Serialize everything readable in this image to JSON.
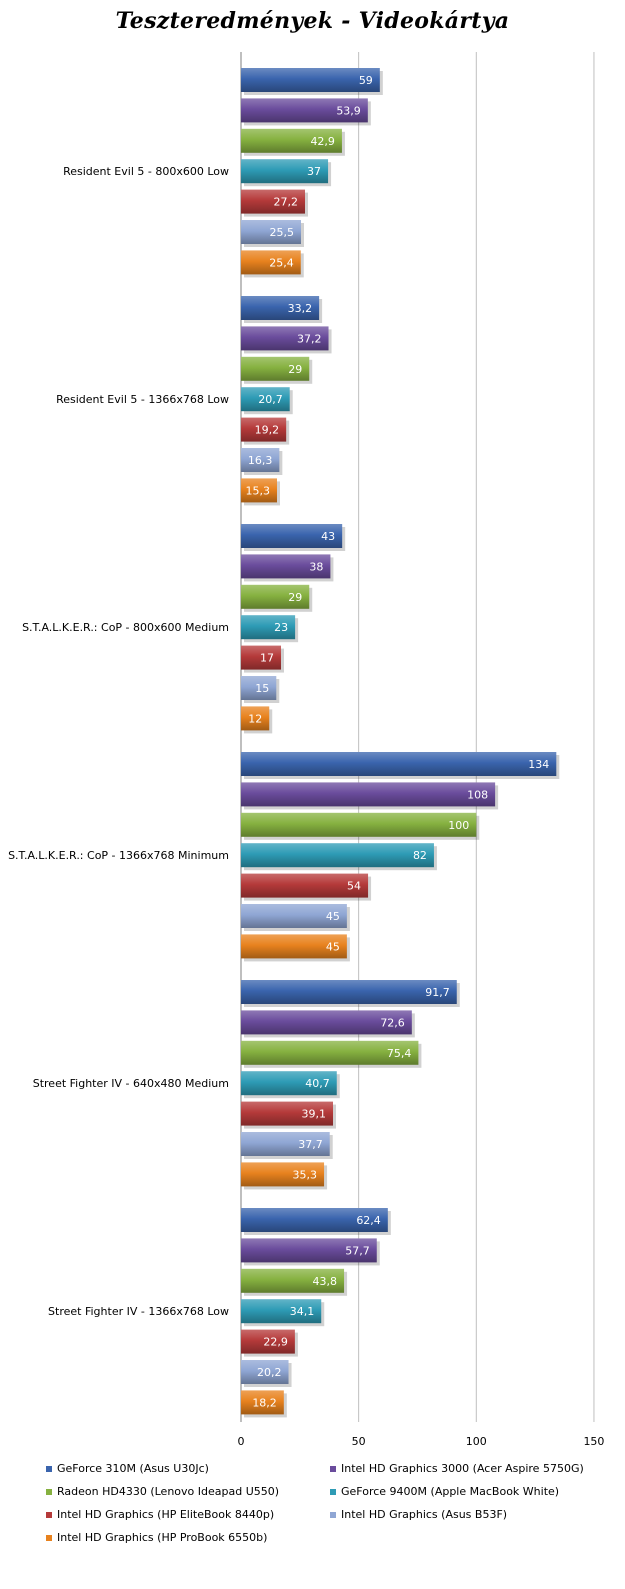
{
  "chart_data": {
    "type": "bar",
    "orientation": "horizontal",
    "title": "Teszteredmények - Videokártya",
    "xlim": [
      0,
      150
    ],
    "xticks": [
      0,
      50,
      100,
      150
    ],
    "grid": true,
    "legend_position": "bottom",
    "categories": [
      "Resident Evil 5 - 800x600 Low",
      "Resident Evil 5 - 1366x768 Low",
      "S.T.A.L.K.E.R.: CoP - 800x600 Medium",
      "S.T.A.L.K.E.R.: CoP - 1366x768 Minimum",
      "Street Fighter IV - 640x480 Medium",
      "Street Fighter IV - 1366x768 Low"
    ],
    "series": [
      {
        "name": "GeForce 310M (Asus U30Jc)",
        "color": "#3a64ad",
        "values": [
          59,
          33.2,
          43,
          134,
          91.7,
          62.4
        ],
        "labels": [
          "59",
          "33,2",
          "43",
          "134",
          "91,7",
          "62,4"
        ]
      },
      {
        "name": "Intel HD Graphics 3000 (Acer Aspire 5750G)",
        "color": "#6a4c9c",
        "values": [
          53.9,
          37.2,
          38,
          108,
          72.6,
          57.7
        ],
        "labels": [
          "53,9",
          "37,2",
          "38",
          "108",
          "72,6",
          "57,7"
        ]
      },
      {
        "name": "Radeon HD4330 (Lenovo Ideapad U550)",
        "color": "#86b140",
        "values": [
          42.9,
          29,
          29,
          100,
          75.4,
          43.8
        ],
        "labels": [
          "42,9",
          "29",
          "29",
          "100",
          "75,4",
          "43,8"
        ]
      },
      {
        "name": "GeForce 9400M (Apple MacBook White)",
        "color": "#2e9bb5",
        "values": [
          37,
          20.7,
          23,
          82,
          40.7,
          34.1
        ],
        "labels": [
          "37",
          "20,7",
          "23",
          "82",
          "40,7",
          "34,1"
        ]
      },
      {
        "name": "Intel HD Graphics (HP EliteBook 8440p)",
        "color": "#b53a3a",
        "values": [
          27.2,
          19.2,
          17,
          54,
          39.1,
          22.9
        ],
        "labels": [
          "27,2",
          "19,2",
          "17",
          "54",
          "39,1",
          "22,9"
        ]
      },
      {
        "name": "Intel HD Graphics (Asus B53F)",
        "color": "#8fa6d4",
        "values": [
          25.5,
          16.3,
          15,
          45,
          37.7,
          20.2
        ],
        "labels": [
          "25,5",
          "16,3",
          "15",
          "45",
          "37,7",
          "20,2"
        ]
      },
      {
        "name": "Intel HD Graphics (HP ProBook 6550b)",
        "color": "#e8821e",
        "values": [
          25.4,
          15.3,
          12,
          45,
          35.3,
          18.2
        ],
        "labels": [
          "25,4",
          "15,3",
          "12",
          "45",
          "35,3",
          "18,2"
        ]
      }
    ]
  }
}
